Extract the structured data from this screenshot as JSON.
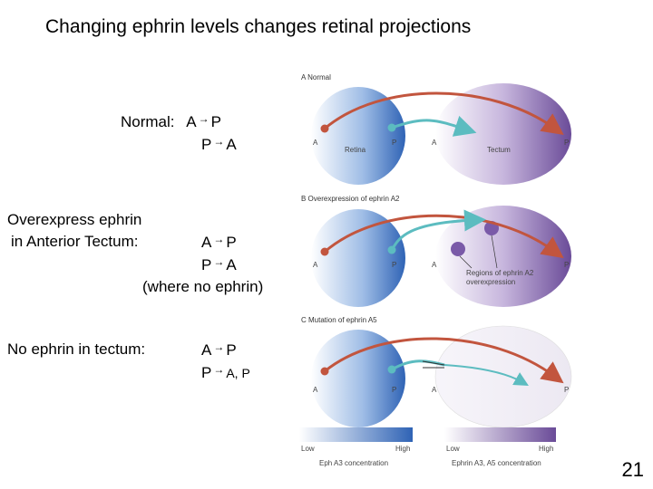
{
  "title": "Changing ephrin levels changes retinal projections",
  "left_labels": {
    "normal": {
      "heading": "Normal:",
      "row1_from": "A",
      "row1_to": "P",
      "row2_from": "P",
      "row2_to": "A"
    },
    "overexpress": {
      "heading_line1": "Overexpress ephrin",
      "heading_line2": "in Anterior Tectum:",
      "row1_from": "A",
      "row1_to": "P",
      "row2_from": "P",
      "row2_to": "A",
      "note": "(where no ephrin)"
    },
    "no_ephrin": {
      "heading": "No ephrin in tectum:",
      "row1_from": "A",
      "row1_to": "P",
      "row2_from": "P",
      "row2_to": "A, P"
    },
    "arrow_glyph": "→"
  },
  "figure": {
    "panels": [
      {
        "caption": "A  Normal",
        "retina_label": "Retina",
        "tectum_label": "Tectum",
        "ret_a": "A",
        "ret_p": "P",
        "tec_a": "A",
        "tec_p": "P"
      },
      {
        "caption": "B  Overexpression of ephrin A2",
        "region_label_line1": "Regions of ephrin A2",
        "region_label_line2": "overexpression",
        "ret_a": "A",
        "ret_p": "P",
        "tec_a": "A",
        "tec_p": "P"
      },
      {
        "caption": "C  Mutation of ephrin A5",
        "ret_a": "A",
        "ret_p": "P",
        "tec_a": "A",
        "tec_p": "P"
      }
    ],
    "legend": {
      "left": {
        "low": "Low",
        "high": "High",
        "caption": "Eph A3 concentration"
      },
      "right": {
        "low": "Low",
        "high": "High",
        "caption": "Ephrin A3, A5 concentration"
      }
    },
    "colors": {
      "retina": "#3a6fbf",
      "tectum": "#6f4f9a",
      "red_axon": "#c2553e",
      "teal_axon": "#5cbcc0",
      "ectopic": "#7a5aa8"
    }
  },
  "page_number": "21"
}
